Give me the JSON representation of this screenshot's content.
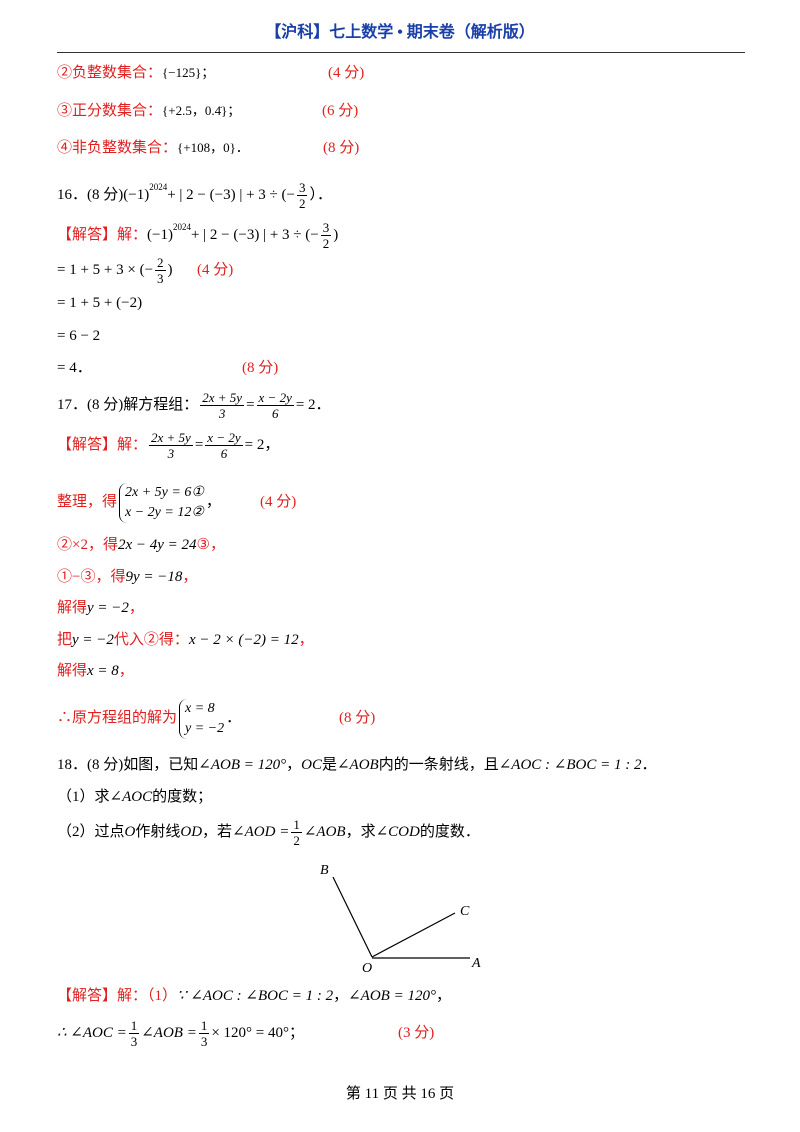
{
  "header": {
    "title": "【沪科】七上数学 • 期末卷（解析版）"
  },
  "lines": [
    [
      "②负整数集合：",
      "{−125}；",
      "(4 分)"
    ],
    [
      "③正分数集合：",
      "{+2.5，0.4̇}；",
      "(6 分)"
    ],
    [
      "④非负整数集合：",
      "{+108，0}．",
      "(8 分)"
    ],
    [
      "16．(8 分)",
      "(−1)",
      "2024",
      "+ | 2 − (−3) | + 3 ÷ (−",
      "3",
      "2",
      "）．"
    ],
    [
      "【解答】解：",
      "(−1)",
      "2024",
      "+ | 2 − (−3) | + 3 ÷ (−",
      "3",
      "2",
      ")"
    ],
    [
      "= 1 + 5 + 3 × (−",
      "2",
      "3",
      ")",
      "(4 分)"
    ],
    [
      "= 1 + 5 + (−2)"
    ],
    [
      "= 6 − 2"
    ],
    [
      "= 4．",
      "(8 分)"
    ],
    [
      "17．(8 分)解方程组：",
      "2x + 5y",
      "3",
      "=",
      "x − 2y",
      "6",
      "= 2．"
    ],
    [
      "【解答】解：",
      "2x + 5y",
      "3",
      "=",
      "x − 2y",
      "6",
      "= 2，"
    ],
    [
      "整理，得",
      "2x + 5y = 6①",
      "x − 2y = 12②",
      "，",
      "(4 分)"
    ],
    [
      "②×2，得",
      "2x − 4y = 24",
      "③，"
    ],
    [
      "①−③，得",
      "9y = −18",
      "，"
    ],
    [
      "解得",
      "y = −2",
      "，"
    ],
    [
      "把",
      "y = −2",
      "代入②得：",
      "x − 2 × (−2) = 12",
      "，"
    ],
    [
      "解得",
      "x = 8",
      "，"
    ],
    [
      "∴原方程组的解为",
      "x = 8",
      "y = −2",
      "．",
      "(8 分)"
    ],
    [
      "18．(8 分)如图，已知",
      "∠AOB = 120°",
      "，",
      "OC",
      "是",
      "∠AOB",
      "内的一条射线，且",
      "∠AOC : ∠BOC = 1 : 2",
      "．"
    ],
    [
      "（1）求",
      "∠AOC",
      "的度数；"
    ],
    [
      "（2）过点",
      "O",
      "作射线",
      "OD",
      "，若",
      "∠AOD =",
      "1",
      "2",
      "∠AOB",
      "，求",
      "∠COD",
      "的度数．"
    ],
    [
      "【解答】解：",
      "（1）",
      "∵ ∠AOC : ∠BOC = 1 : 2",
      "，",
      "∠AOB = 120°",
      "，"
    ],
    [
      "∴ ∠AOC =",
      "1",
      "3",
      "∠AOB =",
      "1",
      "3",
      "× 120° = 40°",
      "；",
      "(3 分)"
    ]
  ],
  "figure": {
    "labels": [
      "B",
      "C",
      "O",
      "A"
    ]
  },
  "footer": {
    "text": "第 11 页 共 16 页"
  }
}
